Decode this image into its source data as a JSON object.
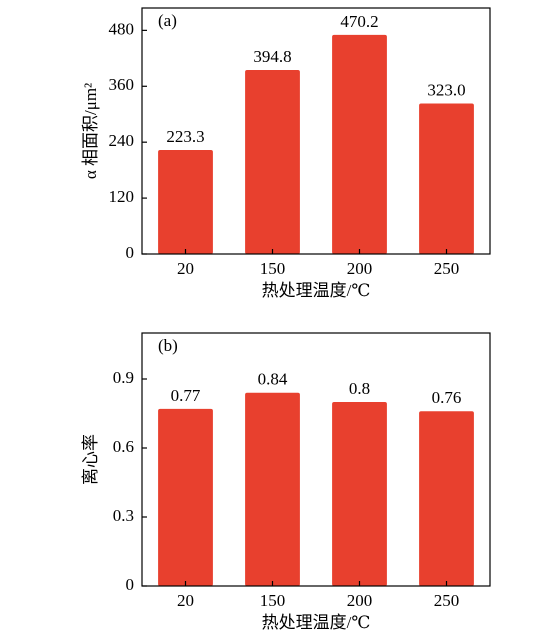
{
  "chart_data": [
    {
      "type": "bar",
      "annotation": "(a)",
      "xlabel": "热处理温度/℃",
      "ylabel": "α 相面积/μm²",
      "categories": [
        "20",
        "150",
        "200",
        "250"
      ],
      "values": [
        223.3,
        394.8,
        470.2,
        323.0
      ],
      "value_labels": [
        "223.3",
        "394.8",
        "470.2",
        "323.0"
      ],
      "color": "#e8402e",
      "ylim": [
        0,
        528
      ],
      "yticks": [
        0,
        120,
        240,
        360,
        480
      ]
    },
    {
      "type": "bar",
      "annotation": "(b)",
      "xlabel": "热处理温度/℃",
      "ylabel": "离心率",
      "categories": [
        "20",
        "150",
        "200",
        "250"
      ],
      "values": [
        0.77,
        0.84,
        0.8,
        0.76
      ],
      "color": "#e8402e",
      "ylim": [
        0,
        1.1
      ],
      "yticks": [
        0,
        0.3,
        0.6,
        0.9
      ]
    }
  ]
}
